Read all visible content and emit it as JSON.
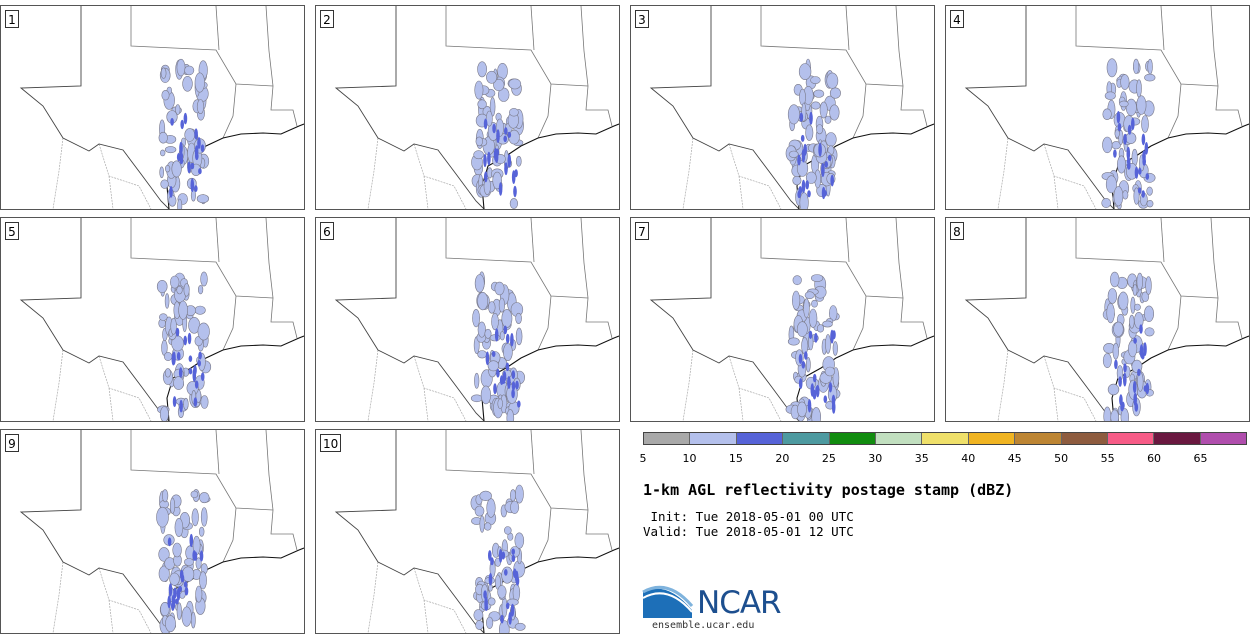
{
  "panels": [
    {
      "label": "1"
    },
    {
      "label": "2"
    },
    {
      "label": "3"
    },
    {
      "label": "4"
    },
    {
      "label": "5"
    },
    {
      "label": "6"
    },
    {
      "label": "7"
    },
    {
      "label": "8"
    },
    {
      "label": "9"
    },
    {
      "label": "10"
    }
  ],
  "colorbar": {
    "colors": [
      "#a9a9a9",
      "#b4c0ec",
      "#5663d8",
      "#4d9aa0",
      "#118c0f",
      "#c1dfbf",
      "#efe06a",
      "#f0b422",
      "#bd8533",
      "#8e5c3f",
      "#f75c87",
      "#6a1840",
      "#b04ead"
    ],
    "ticks": [
      "5",
      "10",
      "15",
      "20",
      "25",
      "30",
      "35",
      "40",
      "45",
      "50",
      "55",
      "60",
      "65"
    ]
  },
  "title": "1-km AGL reflectivity postage stamp (dBZ)",
  "init": " Init: Tue 2018-05-01 00 UTC",
  "valid": "Valid: Tue 2018-05-01 12 UTC",
  "logo": {
    "text": "NCAR",
    "url": "ensemble.ucar.edu"
  }
}
